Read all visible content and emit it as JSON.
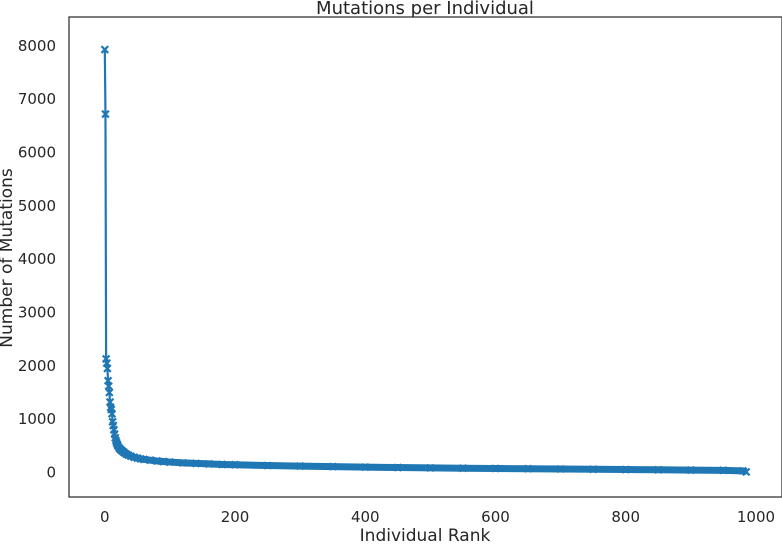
{
  "chart_data": {
    "type": "line",
    "title": "Mutations per Individual",
    "xlabel": "Individual Rank",
    "ylabel": "Number of Mutations",
    "xlim": [
      -55,
      1040
    ],
    "ylim": [
      -460,
      8540
    ],
    "xticks": [
      0,
      200,
      400,
      600,
      800,
      1000
    ],
    "yticks": [
      0,
      1000,
      2000,
      3000,
      4000,
      5000,
      6000,
      7000,
      8000
    ],
    "grid": false,
    "marker": "x",
    "color": "#1f77b4",
    "series": [
      {
        "x": [
          0,
          1,
          2,
          3,
          4,
          5,
          6,
          7,
          8,
          9,
          10,
          11,
          12,
          13,
          14,
          15,
          16,
          17,
          18,
          19,
          20,
          22,
          24,
          26,
          28,
          30,
          33,
          36,
          40,
          45,
          50,
          55,
          60,
          70,
          80,
          90,
          100,
          120,
          140,
          160,
          180,
          200,
          250,
          300,
          350,
          400,
          450,
          500,
          550,
          600,
          650,
          700,
          750,
          800,
          850,
          900,
          950,
          980,
          985
        ],
        "y": [
          7930,
          6720,
          2130,
          2050,
          1950,
          1720,
          1620,
          1500,
          1320,
          1220,
          1180,
          1100,
          950,
          880,
          800,
          720,
          650,
          600,
          560,
          530,
          500,
          460,
          430,
          410,
          390,
          370,
          345,
          325,
          305,
          285,
          270,
          255,
          245,
          230,
          215,
          205,
          195,
          180,
          170,
          160,
          150,
          145,
          130,
          120,
          110,
          100,
          92,
          85,
          80,
          75,
          70,
          65,
          60,
          55,
          50,
          45,
          40,
          30,
          10
        ]
      }
    ]
  }
}
